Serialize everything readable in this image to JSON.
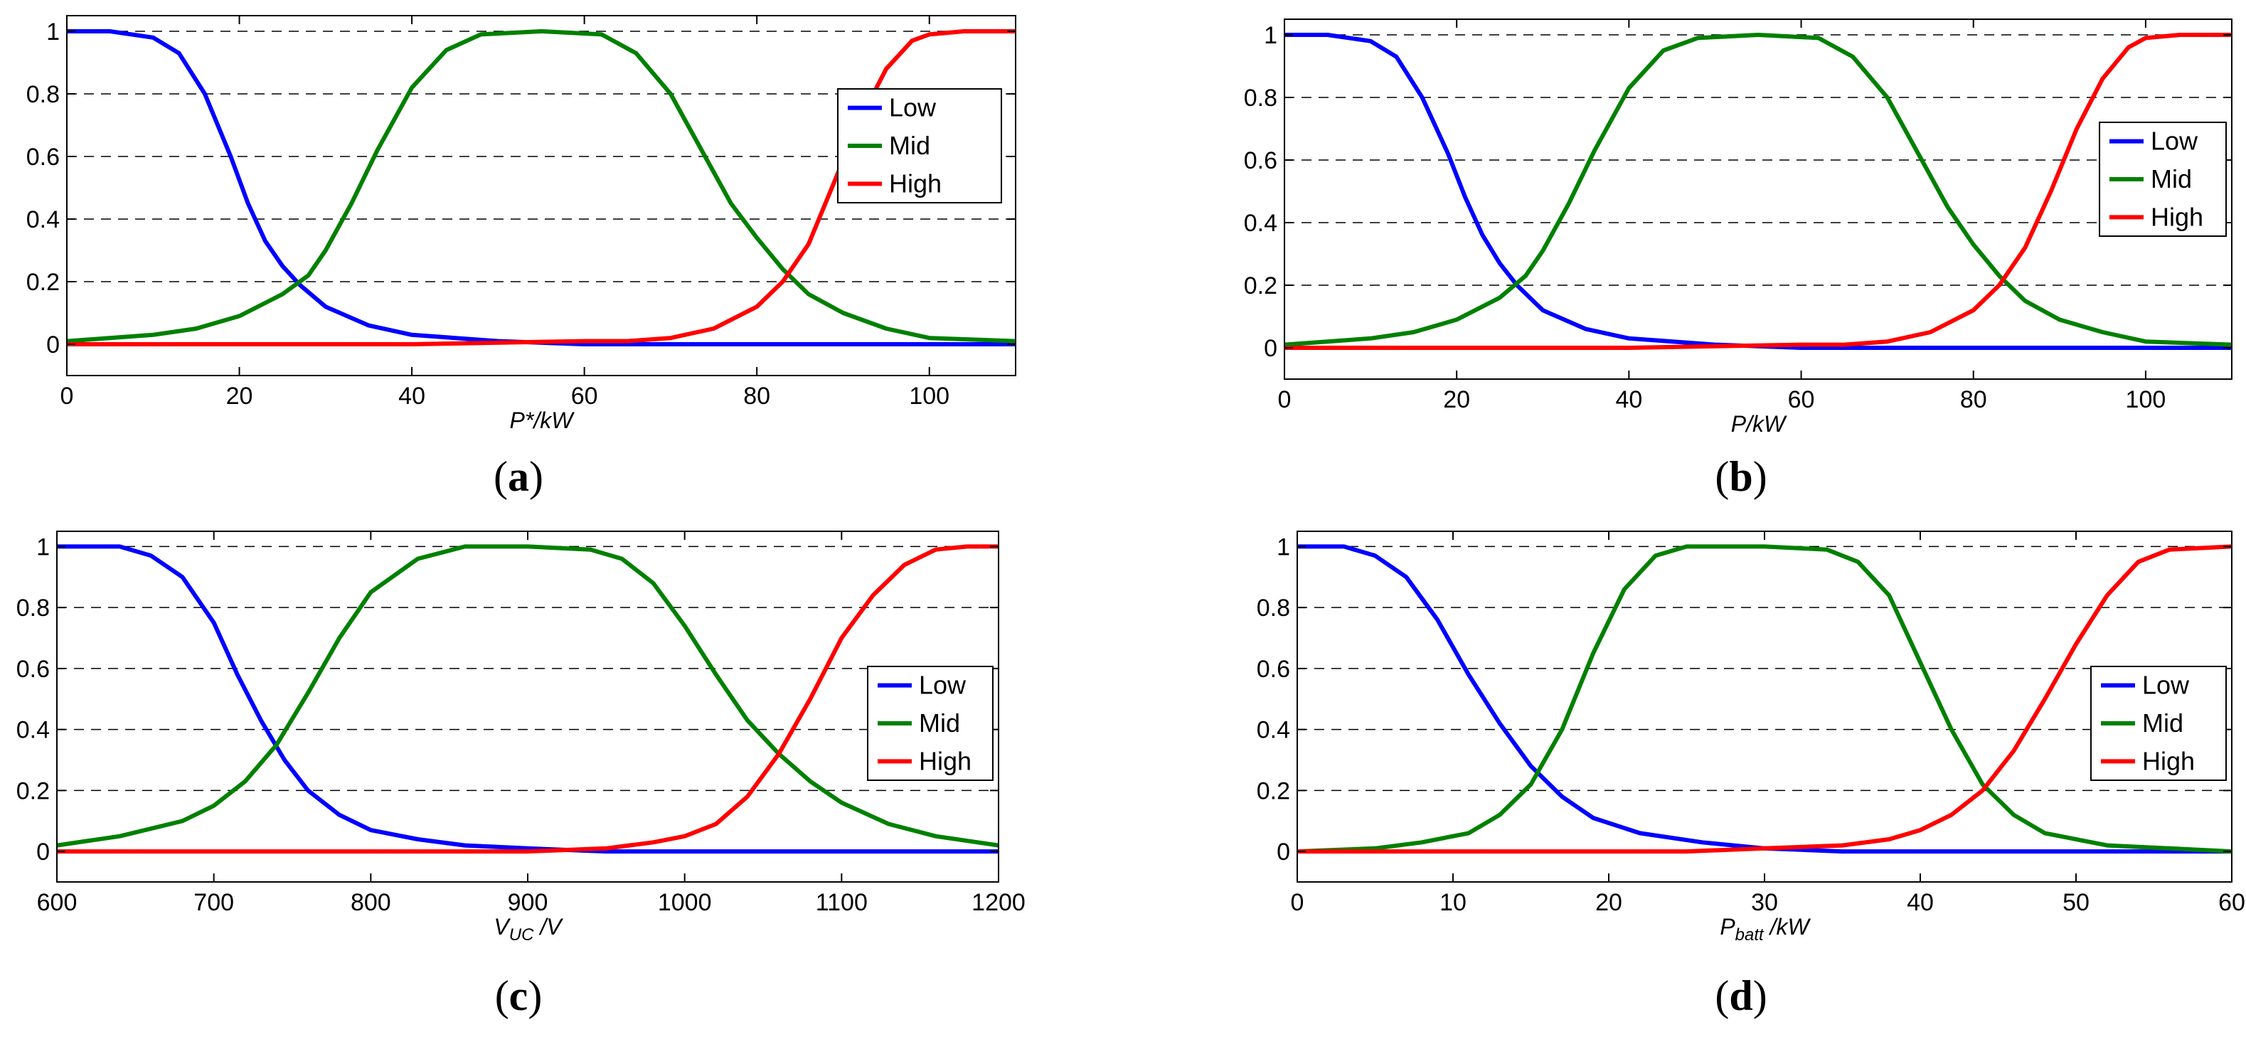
{
  "figure": {
    "panels": [
      "a",
      "b",
      "c",
      "d"
    ]
  },
  "colors": {
    "low": "#0000ff",
    "mid": "#008000",
    "high": "#ff0000",
    "grid": "#000000"
  },
  "chart_data": [
    {
      "id": "a",
      "type": "line",
      "caption": "a",
      "xlabel": {
        "main": "P*/kW",
        "sub": "",
        "tail": ""
      },
      "xlim": [
        0,
        110
      ],
      "ylim": [
        -0.1,
        1.05
      ],
      "xticks": [
        0,
        20,
        40,
        60,
        80,
        100
      ],
      "yticks": [
        0,
        0.2,
        0.4,
        0.6,
        0.8,
        1
      ],
      "ytick_labels": [
        "0",
        "0.2",
        "0.4",
        "0.6",
        "0.8",
        "1"
      ],
      "grid": "y-dashed",
      "legend": {
        "position": "right",
        "entries": [
          "Low",
          "Mid",
          "High"
        ]
      },
      "series": [
        {
          "name": "Low",
          "color": "#0000ff",
          "x": [
            0,
            5,
            10,
            13,
            16,
            19,
            21,
            23,
            25,
            27,
            30,
            35,
            40,
            50,
            60,
            80,
            110
          ],
          "y": [
            1,
            1,
            0.98,
            0.93,
            0.8,
            0.6,
            0.45,
            0.33,
            0.25,
            0.19,
            0.12,
            0.06,
            0.03,
            0.01,
            0,
            0,
            0
          ]
        },
        {
          "name": "Mid",
          "color": "#008000",
          "x": [
            0,
            10,
            15,
            20,
            25,
            28,
            30,
            33,
            36,
            40,
            44,
            48,
            55,
            62,
            66,
            70,
            74,
            77,
            80,
            83,
            86,
            90,
            95,
            100,
            110
          ],
          "y": [
            0.01,
            0.03,
            0.05,
            0.09,
            0.16,
            0.22,
            0.3,
            0.45,
            0.62,
            0.82,
            0.94,
            0.99,
            1,
            0.99,
            0.93,
            0.8,
            0.6,
            0.45,
            0.34,
            0.24,
            0.16,
            0.1,
            0.05,
            0.02,
            0.01
          ]
        },
        {
          "name": "High",
          "color": "#ff0000",
          "x": [
            0,
            40,
            60,
            65,
            70,
            75,
            80,
            83,
            86,
            89,
            92,
            95,
            98,
            100,
            104,
            110
          ],
          "y": [
            0,
            0,
            0.01,
            0.01,
            0.02,
            0.05,
            0.12,
            0.2,
            0.32,
            0.52,
            0.72,
            0.88,
            0.97,
            0.99,
            1,
            1
          ]
        }
      ]
    },
    {
      "id": "b",
      "type": "line",
      "caption": "b",
      "xlabel": {
        "main": "P/kW",
        "sub": "",
        "tail": ""
      },
      "xlim": [
        0,
        110
      ],
      "ylim": [
        -0.1,
        1.05
      ],
      "xticks": [
        0,
        20,
        40,
        60,
        80,
        100
      ],
      "yticks": [
        0,
        0.2,
        0.4,
        0.6,
        0.8,
        1
      ],
      "ytick_labels": [
        "0",
        "0.2",
        "0.4",
        "0.6",
        "0.8",
        "1"
      ],
      "grid": "y-dashed",
      "legend": {
        "position": "right",
        "entries": [
          "Low",
          "Mid",
          "High"
        ]
      },
      "series": [
        {
          "name": "Low",
          "color": "#0000ff",
          "x": [
            0,
            5,
            10,
            13,
            16,
            19,
            21,
            23,
            25,
            27,
            30,
            35,
            40,
            50,
            60,
            80,
            110
          ],
          "y": [
            1,
            1,
            0.98,
            0.93,
            0.8,
            0.62,
            0.48,
            0.36,
            0.27,
            0.2,
            0.12,
            0.06,
            0.03,
            0.01,
            0,
            0,
            0
          ]
        },
        {
          "name": "Mid",
          "color": "#008000",
          "x": [
            0,
            10,
            15,
            20,
            25,
            28,
            30,
            33,
            36,
            40,
            44,
            48,
            55,
            62,
            66,
            70,
            74,
            77,
            80,
            83,
            86,
            90,
            95,
            100,
            110
          ],
          "y": [
            0.01,
            0.03,
            0.05,
            0.09,
            0.16,
            0.23,
            0.31,
            0.46,
            0.63,
            0.83,
            0.95,
            0.99,
            1,
            0.99,
            0.93,
            0.8,
            0.6,
            0.45,
            0.33,
            0.23,
            0.15,
            0.09,
            0.05,
            0.02,
            0.01
          ]
        },
        {
          "name": "High",
          "color": "#ff0000",
          "x": [
            0,
            40,
            60,
            65,
            70,
            75,
            80,
            83,
            86,
            89,
            92,
            95,
            98,
            100,
            104,
            110
          ],
          "y": [
            0,
            0,
            0.01,
            0.01,
            0.02,
            0.05,
            0.12,
            0.2,
            0.32,
            0.5,
            0.7,
            0.86,
            0.96,
            0.99,
            1,
            1
          ]
        }
      ]
    },
    {
      "id": "c",
      "type": "line",
      "caption": "c",
      "xlabel": {
        "main": "V",
        "sub": "UC",
        "tail": " /V"
      },
      "xlim": [
        600,
        1200
      ],
      "ylim": [
        -0.1,
        1.05
      ],
      "xticks": [
        600,
        700,
        800,
        900,
        1000,
        1100,
        1200
      ],
      "yticks": [
        0,
        0.2,
        0.4,
        0.6,
        0.8,
        1
      ],
      "ytick_labels": [
        "0",
        "0.2",
        "0.4",
        "0.6",
        "0.8",
        "1"
      ],
      "grid": "y-dashed",
      "legend": {
        "position": "right",
        "entries": [
          "Low",
          "Mid",
          "High"
        ]
      },
      "series": [
        {
          "name": "Low",
          "color": "#0000ff",
          "x": [
            600,
            640,
            660,
            680,
            700,
            715,
            730,
            745,
            760,
            780,
            800,
            830,
            860,
            900,
            950,
            1000,
            1200
          ],
          "y": [
            1,
            1,
            0.97,
            0.9,
            0.75,
            0.58,
            0.43,
            0.3,
            0.2,
            0.12,
            0.07,
            0.04,
            0.02,
            0.01,
            0,
            0,
            0
          ]
        },
        {
          "name": "Mid",
          "color": "#008000",
          "x": [
            600,
            640,
            680,
            700,
            720,
            740,
            760,
            780,
            800,
            830,
            860,
            900,
            940,
            960,
            980,
            1000,
            1020,
            1040,
            1060,
            1080,
            1100,
            1130,
            1160,
            1200
          ],
          "y": [
            0.02,
            0.05,
            0.1,
            0.15,
            0.23,
            0.35,
            0.52,
            0.7,
            0.85,
            0.96,
            1,
            1,
            0.99,
            0.96,
            0.88,
            0.74,
            0.58,
            0.43,
            0.32,
            0.23,
            0.16,
            0.09,
            0.05,
            0.02
          ]
        },
        {
          "name": "High",
          "color": "#ff0000",
          "x": [
            600,
            900,
            950,
            980,
            1000,
            1020,
            1040,
            1060,
            1080,
            1100,
            1120,
            1140,
            1160,
            1180,
            1200
          ],
          "y": [
            0,
            0,
            0.01,
            0.03,
            0.05,
            0.09,
            0.18,
            0.32,
            0.5,
            0.7,
            0.84,
            0.94,
            0.99,
            1,
            1
          ]
        }
      ]
    },
    {
      "id": "d",
      "type": "line",
      "caption": "d",
      "xlabel": {
        "main": "P",
        "sub": "batt",
        "tail": " /kW"
      },
      "xlim": [
        0,
        60
      ],
      "ylim": [
        -0.1,
        1.05
      ],
      "xticks": [
        0,
        10,
        20,
        30,
        40,
        50,
        60
      ],
      "yticks": [
        0,
        0.2,
        0.4,
        0.6,
        0.8,
        1
      ],
      "ytick_labels": [
        "0",
        "0.2",
        "0.4",
        "0.6",
        "0.8",
        "1"
      ],
      "grid": "y-dashed",
      "legend": {
        "position": "right",
        "entries": [
          "Low",
          "Mid",
          "High"
        ]
      },
      "series": [
        {
          "name": "Low",
          "color": "#0000ff",
          "x": [
            0,
            3,
            5,
            7,
            9,
            11,
            13,
            15,
            17,
            19,
            22,
            26,
            30,
            35,
            40,
            60
          ],
          "y": [
            1,
            1,
            0.97,
            0.9,
            0.76,
            0.58,
            0.42,
            0.28,
            0.18,
            0.11,
            0.06,
            0.03,
            0.01,
            0,
            0,
            0
          ]
        },
        {
          "name": "Mid",
          "color": "#008000",
          "x": [
            0,
            5,
            8,
            11,
            13,
            15,
            17,
            19,
            21,
            23,
            25,
            30,
            34,
            36,
            38,
            40,
            42,
            44,
            46,
            48,
            52,
            56,
            60
          ],
          "y": [
            0,
            0.01,
            0.03,
            0.06,
            0.12,
            0.22,
            0.4,
            0.65,
            0.86,
            0.97,
            1,
            1,
            0.99,
            0.95,
            0.84,
            0.62,
            0.4,
            0.22,
            0.12,
            0.06,
            0.02,
            0.01,
            0
          ]
        },
        {
          "name": "High",
          "color": "#ff0000",
          "x": [
            0,
            25,
            30,
            35,
            38,
            40,
            42,
            44,
            46,
            48,
            50,
            52,
            54,
            56,
            60
          ],
          "y": [
            0,
            0,
            0.01,
            0.02,
            0.04,
            0.07,
            0.12,
            0.2,
            0.33,
            0.5,
            0.68,
            0.84,
            0.95,
            0.99,
            1
          ]
        }
      ]
    }
  ]
}
